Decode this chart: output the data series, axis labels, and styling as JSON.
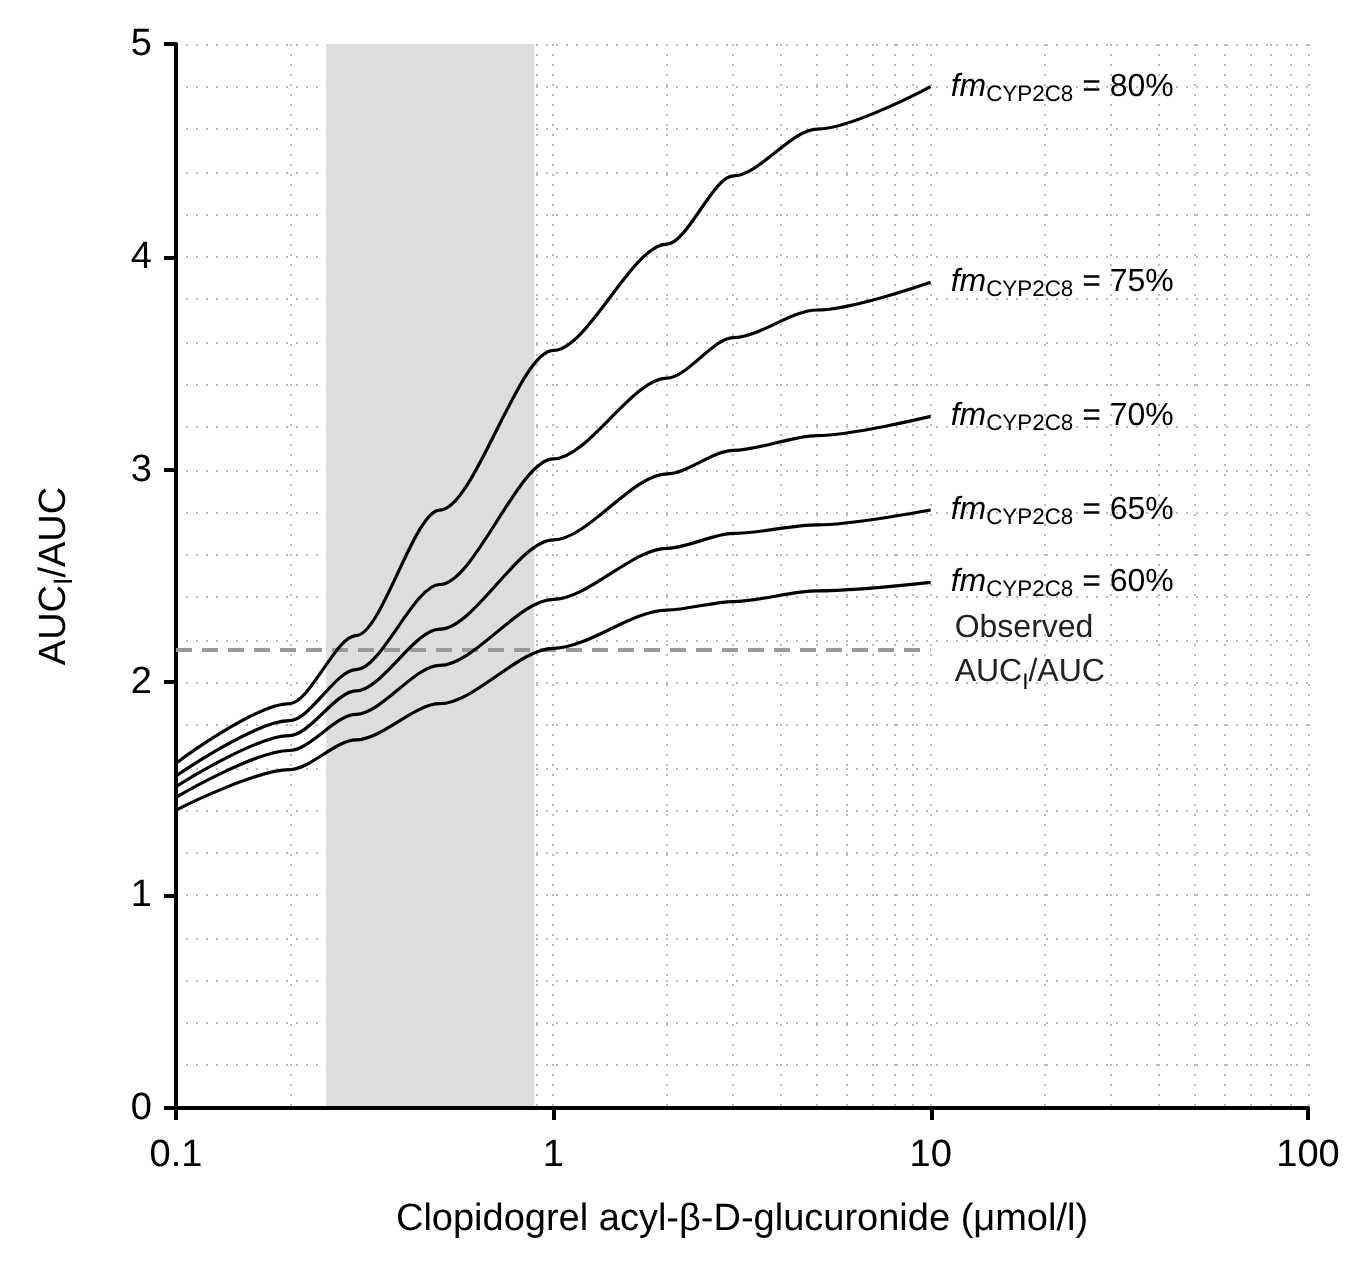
{
  "chart_data": {
    "type": "line",
    "xlabel": "Clopidogrel acyl-β-D-glucuronide (μmol/l)",
    "ylabel": "AUC$_{I}$/AUC",
    "x": [
      0.1,
      0.2,
      0.3,
      0.5,
      1,
      2,
      3,
      5,
      10
    ],
    "series": [
      {
        "name": "fm$_{CYP2C8}$ = 80%",
        "color": "#000000",
        "values": [
          1.62,
          1.9,
          2.22,
          2.81,
          3.56,
          4.06,
          4.38,
          4.6,
          4.8
        ]
      },
      {
        "name": "fm$_{CYP2C8}$ = 75%",
        "color": "#000000",
        "values": [
          1.56,
          1.82,
          2.06,
          2.46,
          3.05,
          3.43,
          3.62,
          3.75,
          3.88
        ]
      },
      {
        "name": "fm$_{CYP2C8}$ = 70%",
        "color": "#000000",
        "values": [
          1.51,
          1.75,
          1.96,
          2.25,
          2.67,
          2.98,
          3.09,
          3.16,
          3.25
        ]
      },
      {
        "name": "fm$_{CYP2C8}$ = 65%",
        "color": "#000000",
        "values": [
          1.46,
          1.68,
          1.85,
          2.08,
          2.39,
          2.63,
          2.7,
          2.74,
          2.81
        ]
      },
      {
        "name": "fm$_{CYP2C8}$ = 60%",
        "color": "#000000",
        "values": [
          1.4,
          1.59,
          1.73,
          1.9,
          2.16,
          2.34,
          2.38,
          2.43,
          2.47
        ]
      }
    ],
    "log": "x",
    "xlim": [
      0.1,
      100
    ],
    "xticks": [
      0.1,
      1,
      10,
      100
    ],
    "ylim": [
      0,
      5
    ],
    "yticks": [
      0,
      1,
      2,
      3,
      4,
      5
    ],
    "ref_lines": [
      {
        "axis": "y",
        "value": 2.15,
        "label": "Observed AUC$_{I}$/AUC",
        "color": "#999999",
        "line_style": "dashed"
      }
    ],
    "bands": [
      {
        "axis": "x",
        "from": 0.25,
        "to": 0.89,
        "color": "#dddddd"
      }
    ],
    "grid": true,
    "legend": false,
    "marker": "none",
    "line_style": "solid"
  }
}
